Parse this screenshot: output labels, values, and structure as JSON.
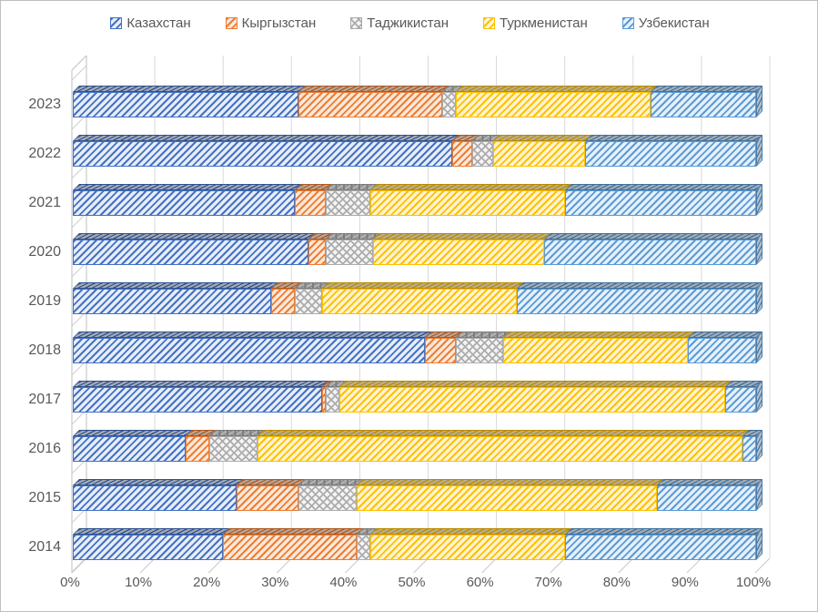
{
  "chart": {
    "title": "",
    "legend_position": "top",
    "text_color": "#595959",
    "gridline_color": "#D9D9D9",
    "wall_line_color": "#BFBFBF",
    "x_axis": {
      "tick_labels": [
        "0%",
        "10%",
        "20%",
        "30%",
        "40%",
        "50%",
        "60%",
        "70%",
        "80%",
        "90%",
        "100%"
      ]
    },
    "y_axis": {
      "categories": [
        "2023",
        "2022",
        "2021",
        "2020",
        "2019",
        "2018",
        "2017",
        "2016",
        "2015",
        "2014"
      ]
    }
  },
  "chart_data": {
    "type": "bar",
    "subtype": "100%-stacked-horizontal-3d",
    "orientation": "horizontal",
    "grid": true,
    "xlim": [
      0,
      100
    ],
    "units": "percent",
    "title": "",
    "xlabel": "",
    "ylabel": "",
    "categories": [
      "2023",
      "2022",
      "2021",
      "2020",
      "2019",
      "2018",
      "2017",
      "2016",
      "2015",
      "2014"
    ],
    "series": [
      {
        "key": "kazakhstan",
        "name": "Казахстан",
        "color": "#4472C4",
        "values": [
          33.0,
          55.5,
          32.5,
          34.5,
          29.0,
          51.5,
          36.5,
          16.5,
          24.0,
          22.0
        ]
      },
      {
        "key": "kyrgyzstan",
        "name": "Кыргызстан",
        "color": "#ED7D31",
        "values": [
          21.0,
          3.0,
          4.5,
          2.5,
          3.5,
          4.5,
          0.5,
          3.5,
          9.0,
          19.5
        ]
      },
      {
        "key": "tajikistan",
        "name": "Таджикистан",
        "color": "#A5A5A5",
        "values": [
          2.0,
          3.0,
          6.5,
          7.0,
          4.0,
          7.0,
          2.0,
          7.0,
          8.5,
          2.0
        ]
      },
      {
        "key": "turkmenistan",
        "name": "Туркменистан",
        "color": "#FFC000",
        "values": [
          28.5,
          13.5,
          28.5,
          25.0,
          28.5,
          27.0,
          56.5,
          71.0,
          44.0,
          28.5
        ]
      },
      {
        "key": "uzbekistan",
        "name": "Узбекистан",
        "color": "#5B9BD5",
        "values": [
          15.5,
          25.0,
          28.0,
          31.0,
          35.0,
          10.0,
          4.5,
          2.0,
          14.5,
          28.0
        ]
      }
    ]
  }
}
